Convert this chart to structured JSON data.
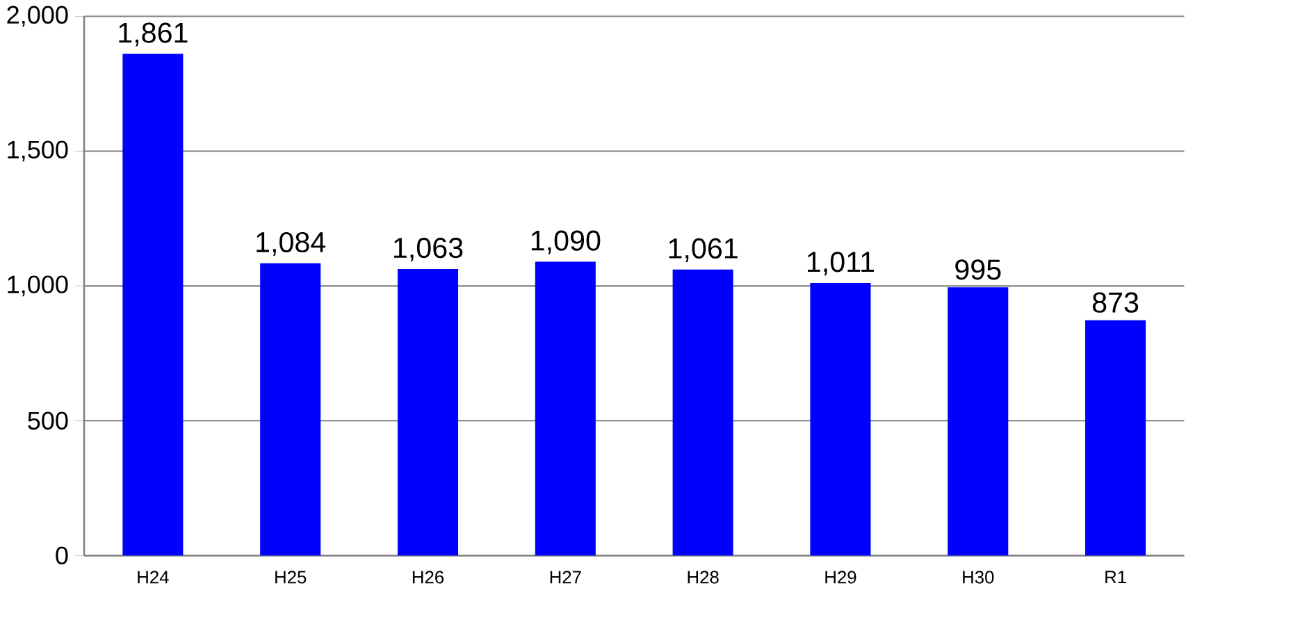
{
  "chart_data": {
    "type": "bar",
    "categories": [
      "H24",
      "H25",
      "H26",
      "H27",
      "H28",
      "H29",
      "H30",
      "R1"
    ],
    "values": [
      1861,
      1084,
      1063,
      1090,
      1061,
      1011,
      995,
      873
    ],
    "value_labels": [
      "1,861",
      "1,084",
      "1,063",
      "1,090",
      "1,061",
      "1,011",
      "995",
      "873"
    ],
    "color": "#0000ff",
    "ylim": [
      0,
      2000
    ],
    "yticks": [
      0,
      500,
      {
        "value": 1000,
        "label": "1,000"
      },
      {
        "value": 1500,
        "label": "1,500"
      },
      {
        "value": 2000,
        "label": "2,000"
      }
    ],
    "grid": "y"
  }
}
